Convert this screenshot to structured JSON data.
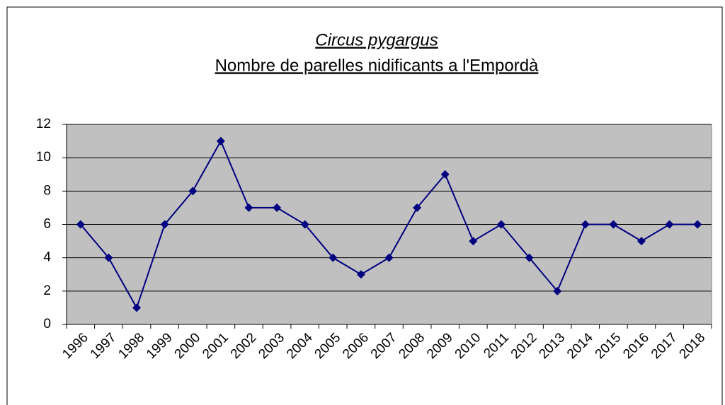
{
  "chart_data": {
    "type": "line",
    "title": "Circus pygargus",
    "subtitle": "Nombre de parelles nidificants a l'Empordà",
    "categories": [
      "1996",
      "1997",
      "1998",
      "1999",
      "2000",
      "2001",
      "2002",
      "2003",
      "2004",
      "2005",
      "2006",
      "2007",
      "2008",
      "2009",
      "2010",
      "2011",
      "2012",
      "2013",
      "2014",
      "2015",
      "2016",
      "2017",
      "2018"
    ],
    "values": [
      6,
      4,
      1,
      6,
      8,
      11,
      7,
      7,
      6,
      4,
      3,
      4,
      7,
      9,
      5,
      6,
      4,
      2,
      6,
      6,
      5,
      6,
      6
    ],
    "color": "#000080",
    "ylim": [
      0,
      12
    ],
    "yticks": [
      0,
      2,
      4,
      6,
      8,
      10,
      12
    ],
    "grid": true
  }
}
